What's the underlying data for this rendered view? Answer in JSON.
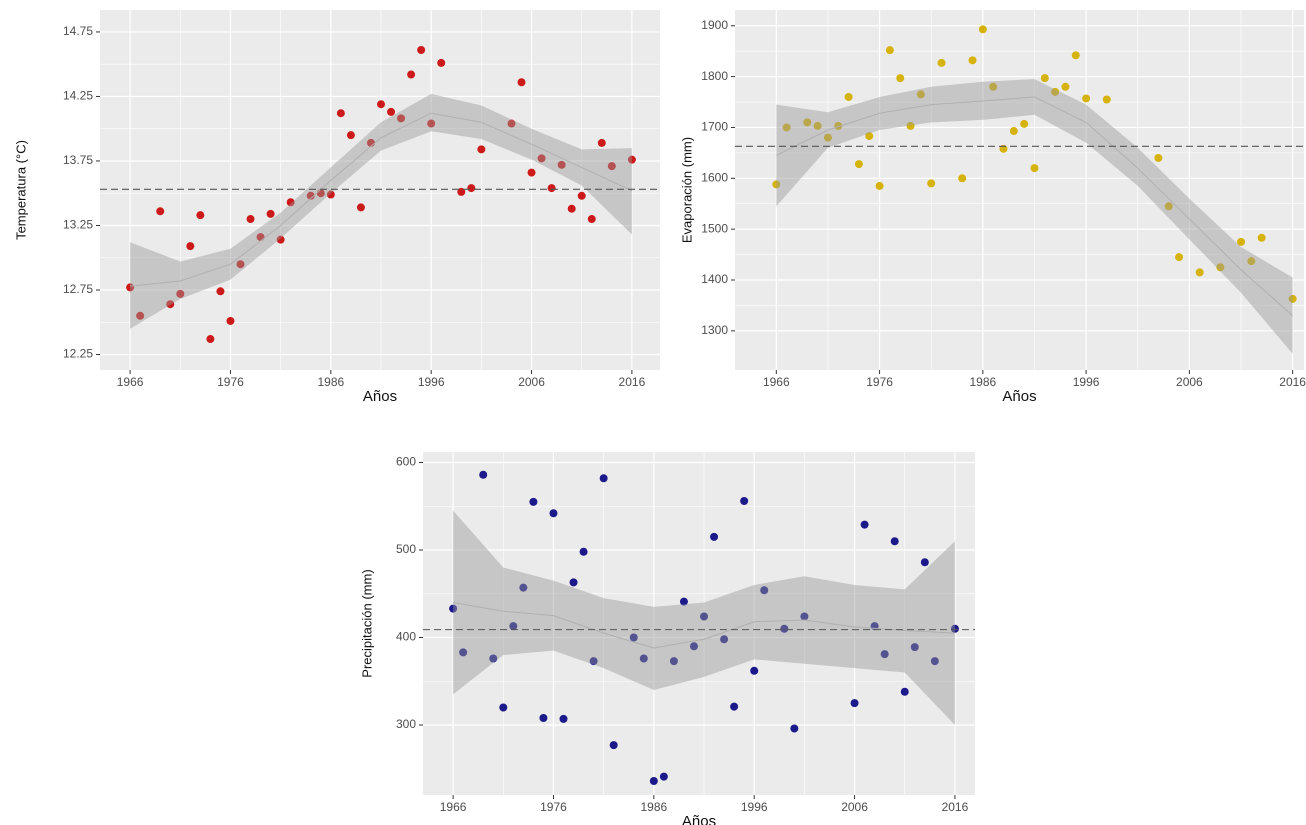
{
  "chart_data": [
    {
      "type": "scatter",
      "x_label": "Años",
      "y_label": "Temperatura (°C)",
      "color": "#cc1a1a",
      "x": [
        1966,
        1967,
        1969,
        1970,
        1971,
        1972,
        1973,
        1974,
        1975,
        1976,
        1977,
        1978,
        1979,
        1980,
        1981,
        1982,
        1984,
        1985,
        1986,
        1987,
        1988,
        1989,
        1990,
        1991,
        1992,
        1993,
        1994,
        1995,
        1996,
        1997,
        1999,
        2000,
        2001,
        2004,
        2005,
        2006,
        2007,
        2008,
        2009,
        2010,
        2011,
        2012,
        2013,
        2014,
        2016
      ],
      "values": [
        12.77,
        12.55,
        13.36,
        12.64,
        12.72,
        13.09,
        13.33,
        12.37,
        12.74,
        12.51,
        12.95,
        13.3,
        13.16,
        13.34,
        13.14,
        13.43,
        13.48,
        13.5,
        13.49,
        14.12,
        13.95,
        13.39,
        13.89,
        14.19,
        14.13,
        14.08,
        14.42,
        14.61,
        14.04,
        14.51,
        13.51,
        13.54,
        13.84,
        14.04,
        14.36,
        13.66,
        13.77,
        13.54,
        13.72,
        13.38,
        13.48,
        13.3,
        13.89,
        13.71,
        13.76
      ],
      "xlim": [
        1963,
        2018.8
      ],
      "ylim": [
        12.13,
        14.92
      ],
      "xticks": [
        1966,
        1976,
        1986,
        1996,
        2006,
        2016
      ],
      "yticks": [
        12.25,
        12.75,
        13.25,
        13.75,
        14.25,
        14.75
      ],
      "hline": 13.53,
      "smooth": {
        "x": [
          1966,
          1971,
          1976,
          1981,
          1986,
          1991,
          1996,
          2001,
          2006,
          2011,
          2016
        ],
        "y": [
          12.78,
          12.82,
          12.95,
          13.25,
          13.6,
          13.93,
          14.12,
          14.05,
          13.88,
          13.7,
          13.52
        ],
        "lower": [
          12.45,
          12.68,
          12.83,
          13.15,
          13.5,
          13.83,
          13.98,
          13.92,
          13.76,
          13.56,
          13.18
        ],
        "upper": [
          13.12,
          12.97,
          13.07,
          13.35,
          13.7,
          14.05,
          14.27,
          14.18,
          14.0,
          13.84,
          13.85
        ]
      }
    },
    {
      "type": "scatter",
      "x_label": "Años",
      "y_label": "Evaporación (mm)",
      "color": "#d6b30c",
      "x": [
        1966,
        1967,
        1969,
        1970,
        1971,
        1972,
        1973,
        1974,
        1975,
        1976,
        1977,
        1978,
        1979,
        1980,
        1981,
        1982,
        1984,
        1985,
        1986,
        1987,
        1988,
        1989,
        1990,
        1991,
        1992,
        1993,
        1994,
        1995,
        1996,
        1998,
        2003,
        2004,
        2005,
        2007,
        2009,
        2011,
        2012,
        2013,
        2016
      ],
      "values": [
        1588,
        1700,
        1710,
        1703,
        1680,
        1703,
        1760,
        1628,
        1683,
        1585,
        1852,
        1797,
        1703,
        1765,
        1590,
        1827,
        1600,
        1832,
        1893,
        1780,
        1658,
        1693,
        1707,
        1620,
        1797,
        1770,
        1780,
        1842,
        1757,
        1755,
        1640,
        1545,
        1445,
        1415,
        1425,
        1475,
        1437,
        1483,
        1363
      ],
      "xlim": [
        1962,
        2017.1
      ],
      "ylim": [
        1223,
        1931
      ],
      "xticks": [
        1966,
        1976,
        1986,
        1996,
        2006,
        2016
      ],
      "yticks": [
        1300,
        1400,
        1500,
        1600,
        1700,
        1800,
        1900
      ],
      "hline": 1663,
      "smooth": {
        "x": [
          1966,
          1971,
          1976,
          1981,
          1986,
          1991,
          1996,
          2001,
          2006,
          2011,
          2016
        ],
        "y": [
          1645,
          1695,
          1728,
          1745,
          1752,
          1760,
          1710,
          1620,
          1520,
          1420,
          1330
        ],
        "lower": [
          1545,
          1660,
          1695,
          1710,
          1715,
          1725,
          1670,
          1585,
          1480,
          1375,
          1255
        ],
        "upper": [
          1745,
          1730,
          1760,
          1780,
          1790,
          1795,
          1745,
          1660,
          1560,
          1465,
          1405
        ]
      }
    },
    {
      "type": "scatter",
      "x_label": "Años",
      "y_label": "Precipitación (mm)",
      "color": "#1c1a8a",
      "x": [
        1966,
        1967,
        1969,
        1970,
        1971,
        1972,
        1973,
        1974,
        1975,
        1976,
        1977,
        1978,
        1979,
        1980,
        1981,
        1982,
        1984,
        1985,
        1986,
        1987,
        1988,
        1989,
        1990,
        1991,
        1992,
        1993,
        1994,
        1995,
        1996,
        1997,
        1999,
        2000,
        2001,
        2006,
        2007,
        2008,
        2009,
        2010,
        2011,
        2012,
        2013,
        2014,
        2016
      ],
      "values": [
        433,
        383,
        586,
        376,
        320,
        413,
        457,
        555,
        308,
        542,
        307,
        463,
        498,
        373,
        582,
        277,
        400,
        376,
        236,
        241,
        373,
        441,
        390,
        424,
        515,
        398,
        321,
        556,
        362,
        454,
        410,
        296,
        424,
        325,
        529,
        413,
        381,
        510,
        338,
        389,
        486,
        373,
        410
      ],
      "xlim": [
        1963,
        2018
      ],
      "ylim": [
        220,
        612
      ],
      "xticks": [
        1966,
        1976,
        1986,
        1996,
        2006,
        2016
      ],
      "yticks": [
        300,
        400,
        500,
        600
      ],
      "hline": 409,
      "smooth": {
        "x": [
          1966,
          1971,
          1976,
          1981,
          1986,
          1991,
          1996,
          2001,
          2006,
          2011,
          2016
        ],
        "y": [
          440,
          430,
          425,
          405,
          388,
          398,
          418,
          420,
          412,
          408,
          405
        ],
        "lower": [
          335,
          380,
          385,
          365,
          340,
          355,
          375,
          370,
          365,
          360,
          300
        ],
        "upper": [
          545,
          480,
          465,
          445,
          435,
          440,
          460,
          470,
          460,
          455,
          510
        ]
      }
    }
  ]
}
